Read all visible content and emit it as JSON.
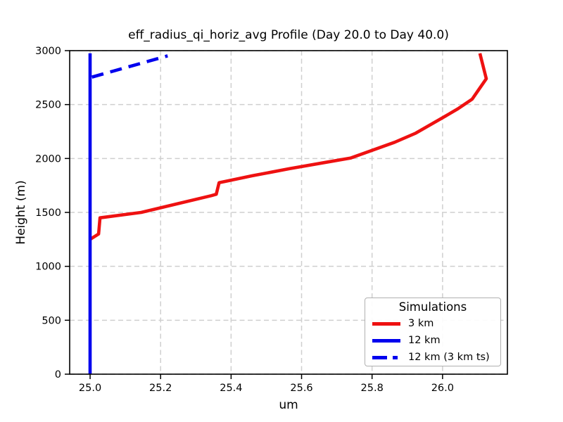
{
  "chart_data": {
    "type": "line",
    "title": "eff_radius_qi_horiz_avg Profile (Day 20.0 to Day 40.0)",
    "xlabel": "um",
    "ylabel": "Height (m)",
    "xlim": [
      24.942,
      26.184
    ],
    "ylim": [
      0,
      3000
    ],
    "xticks": [
      "25.0",
      "25.2",
      "25.4",
      "25.6",
      "25.8",
      "26.0"
    ],
    "yticks": [
      "0",
      "500",
      "1000",
      "1500",
      "2000",
      "2500",
      "3000"
    ],
    "grid": true,
    "grid_color": "#cfcfcf",
    "spine_color": "#000000",
    "background": "#ffffff",
    "legend": {
      "title": "Simulations",
      "position": "lower right"
    },
    "series": [
      {
        "name": "3 km",
        "color": "#ee1111",
        "style": "solid",
        "points": [
          [
            25.0,
            1250
          ],
          [
            25.024,
            1300
          ],
          [
            25.028,
            1450
          ],
          [
            25.145,
            1500
          ],
          [
            25.344,
            1655
          ],
          [
            25.358,
            1668
          ],
          [
            25.366,
            1775
          ],
          [
            25.46,
            1840
          ],
          [
            25.565,
            1905
          ],
          [
            25.67,
            1965
          ],
          [
            25.74,
            2005
          ],
          [
            25.864,
            2150
          ],
          [
            25.924,
            2235
          ],
          [
            26.004,
            2385
          ],
          [
            26.044,
            2462
          ],
          [
            26.084,
            2550
          ],
          [
            26.124,
            2740
          ],
          [
            26.106,
            2975
          ]
        ]
      },
      {
        "name": "12 km",
        "color": "#0000ee",
        "style": "solid",
        "points": [
          [
            25.0,
            0
          ],
          [
            25.0,
            2975
          ]
        ]
      },
      {
        "name": "12 km (3 km ts)",
        "color": "#0000ee",
        "style": "dashed",
        "points": [
          [
            25.005,
            2755
          ],
          [
            25.22,
            2952
          ]
        ]
      }
    ]
  }
}
